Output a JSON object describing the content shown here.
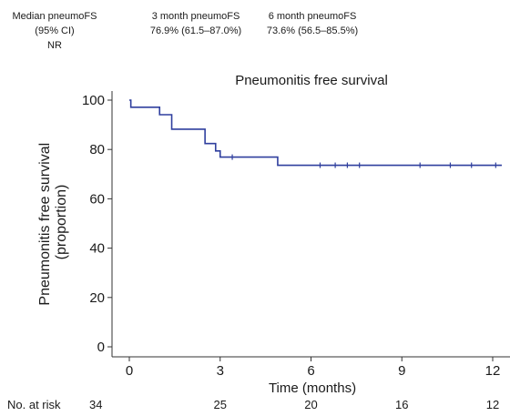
{
  "summary": {
    "median": {
      "label": "Median pneumoFS",
      "sublabel": "(95% CI)",
      "value": "NR"
    },
    "three_month": {
      "label": "3 month pneumoFS",
      "value": "76.9% (61.5–87.0%)"
    },
    "six_month": {
      "label": "6 month pneumoFS",
      "value": "73.6% (56.5–85.5%)"
    }
  },
  "chart_data": {
    "type": "line",
    "title": "Pneumonitis free survival",
    "xlabel": "Time (months)",
    "ylabel": "Pneumonitis free survival (proportion)",
    "ylabel_lines": [
      "Pneumonitis free survival",
      "(proportion)"
    ],
    "xlim": [
      0,
      12
    ],
    "ylim": [
      0,
      100
    ],
    "x_ticks": [
      0,
      3,
      6,
      9,
      12
    ],
    "y_ticks": [
      0,
      20,
      40,
      60,
      80,
      100
    ],
    "grid": false,
    "series": [
      {
        "color": "#2f3f9e",
        "steps": [
          {
            "x": 0,
            "y": 100
          },
          {
            "x": 0.05,
            "y": 97.1
          },
          {
            "x": 1.0,
            "y": 94.1
          },
          {
            "x": 1.4,
            "y": 88.2
          },
          {
            "x": 2.5,
            "y": 82.4
          },
          {
            "x": 2.85,
            "y": 79.4
          },
          {
            "x": 3.0,
            "y": 76.9
          },
          {
            "x": 4.9,
            "y": 73.6
          }
        ],
        "end_x": 12.3,
        "censored_x": [
          3.4,
          6.3,
          6.8,
          7.2,
          7.6,
          9.6,
          10.6,
          11.3,
          12.1
        ]
      }
    ],
    "risk_table": {
      "label": "No. at risk",
      "times": [
        0,
        3,
        6,
        9,
        12
      ],
      "counts": [
        34,
        25,
        20,
        16,
        12
      ]
    }
  }
}
